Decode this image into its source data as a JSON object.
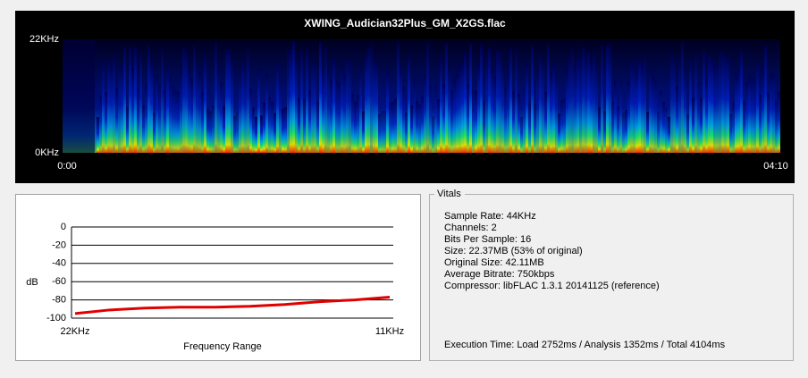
{
  "spectrogram": {
    "title": "XWING_Audician32Plus_GM_X2GS.flac",
    "freq_top": "22KHz",
    "freq_bottom": "0KHz",
    "time_start": "0:00",
    "time_end": "04:10"
  },
  "chart_data": {
    "type": "line",
    "y_label": "dB",
    "x_label": "Frequency Range",
    "categories": [
      "22KHz",
      null,
      null,
      null,
      null,
      null,
      null,
      null,
      null,
      "11KHz"
    ],
    "values": [
      -95,
      -91,
      -89,
      -88,
      -88,
      -87,
      -85,
      -82,
      -80,
      -77
    ],
    "color": "#e00000",
    "ylim": [
      -100,
      0
    ],
    "yticks": [
      0,
      -20,
      -40,
      -60,
      -80,
      -100
    ],
    "grid": true
  },
  "vitals": {
    "title": "Vitals",
    "lines": [
      "Sample Rate: 44KHz",
      "Channels: 2",
      "Bits Per Sample: 16",
      "Size: 22.37MB (53% of original)",
      "Original Size: 42.11MB",
      "Average Bitrate: 750kbps",
      "Compressor: libFLAC 1.3.1 20141125 (reference)"
    ],
    "execution_time": "Execution Time: Load 2752ms / Analysis 1352ms / Total 4104ms"
  }
}
